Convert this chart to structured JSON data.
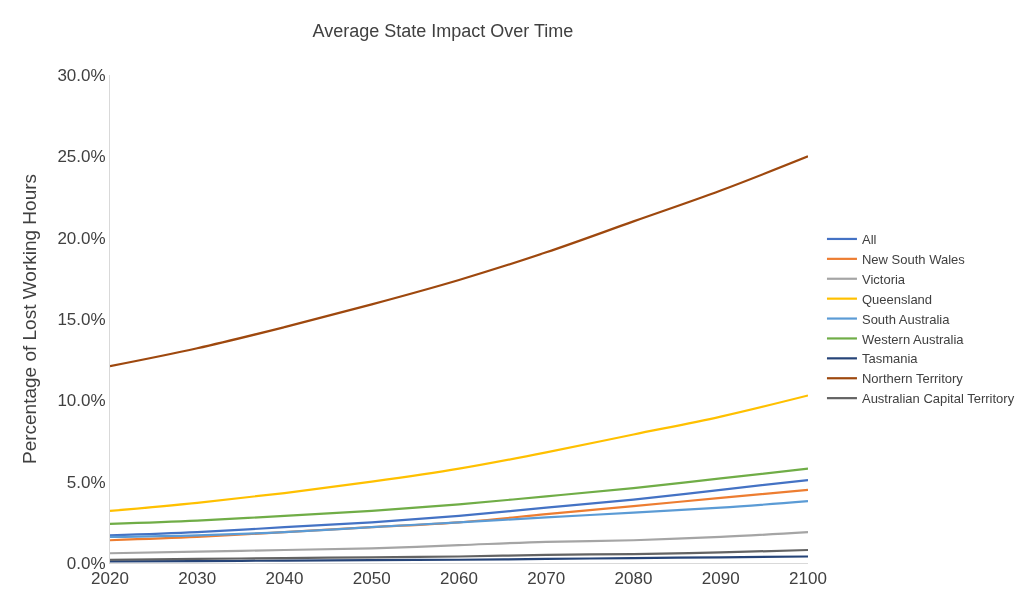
{
  "chart_data": {
    "type": "line",
    "title": "Average State Impact Over Time",
    "ylabel": "Percentage of Lost Working Hours",
    "x": [
      2020,
      2030,
      2040,
      2050,
      2060,
      2070,
      2080,
      2090,
      2100
    ],
    "xlim": [
      2020,
      2100
    ],
    "xticks": [
      2020,
      2030,
      2040,
      2050,
      2060,
      2070,
      2080,
      2090,
      2100
    ],
    "ylim": [
      0,
      30
    ],
    "yticks": [
      {
        "value": 0,
        "label": "0.0%"
      },
      {
        "value": 5,
        "label": "5.0%"
      },
      {
        "value": 10,
        "label": "10.0%"
      },
      {
        "value": 15,
        "label": "15.0%"
      },
      {
        "value": 20,
        "label": "20.0%"
      },
      {
        "value": 25,
        "label": "25.0%"
      },
      {
        "value": 30,
        "label": "30.0%"
      }
    ],
    "grid": false,
    "legend": "right",
    "marker": "none",
    "line_style": "solid",
    "series": [
      {
        "name": "All",
        "color": "#4472c4",
        "values": [
          1.7,
          1.9,
          2.2,
          2.5,
          2.9,
          3.4,
          3.9,
          4.5,
          5.1
        ]
      },
      {
        "name": "New South Wales",
        "color": "#ed7d31",
        "values": [
          1.4,
          1.6,
          1.9,
          2.2,
          2.5,
          3.0,
          3.5,
          4.0,
          4.5
        ]
      },
      {
        "name": "Victoria",
        "color": "#a5a5a5",
        "values": [
          0.6,
          0.7,
          0.8,
          0.9,
          1.1,
          1.3,
          1.4,
          1.6,
          1.9
        ]
      },
      {
        "name": "Queensland",
        "color": "#ffc000",
        "values": [
          3.2,
          3.7,
          4.3,
          5.0,
          5.8,
          6.8,
          7.9,
          9.0,
          10.3
        ]
      },
      {
        "name": "South Australia",
        "color": "#5b9bd5",
        "values": [
          1.6,
          1.7,
          1.9,
          2.2,
          2.5,
          2.8,
          3.1,
          3.4,
          3.8
        ]
      },
      {
        "name": "Western Australia",
        "color": "#70ad47",
        "values": [
          2.4,
          2.6,
          2.9,
          3.2,
          3.6,
          4.1,
          4.6,
          5.2,
          5.8
        ]
      },
      {
        "name": "Tasmania",
        "color": "#264478",
        "values": [
          0.1,
          0.12,
          0.15,
          0.18,
          0.2,
          0.25,
          0.3,
          0.35,
          0.4
        ]
      },
      {
        "name": "Northern Territory",
        "color": "#9e480e",
        "values": [
          12.1,
          13.2,
          14.5,
          15.9,
          17.4,
          19.1,
          21.0,
          22.9,
          25.0
        ]
      },
      {
        "name": "Australian Capital Territory",
        "color": "#636363",
        "values": [
          0.2,
          0.25,
          0.3,
          0.35,
          0.4,
          0.5,
          0.55,
          0.65,
          0.8
        ]
      }
    ]
  }
}
